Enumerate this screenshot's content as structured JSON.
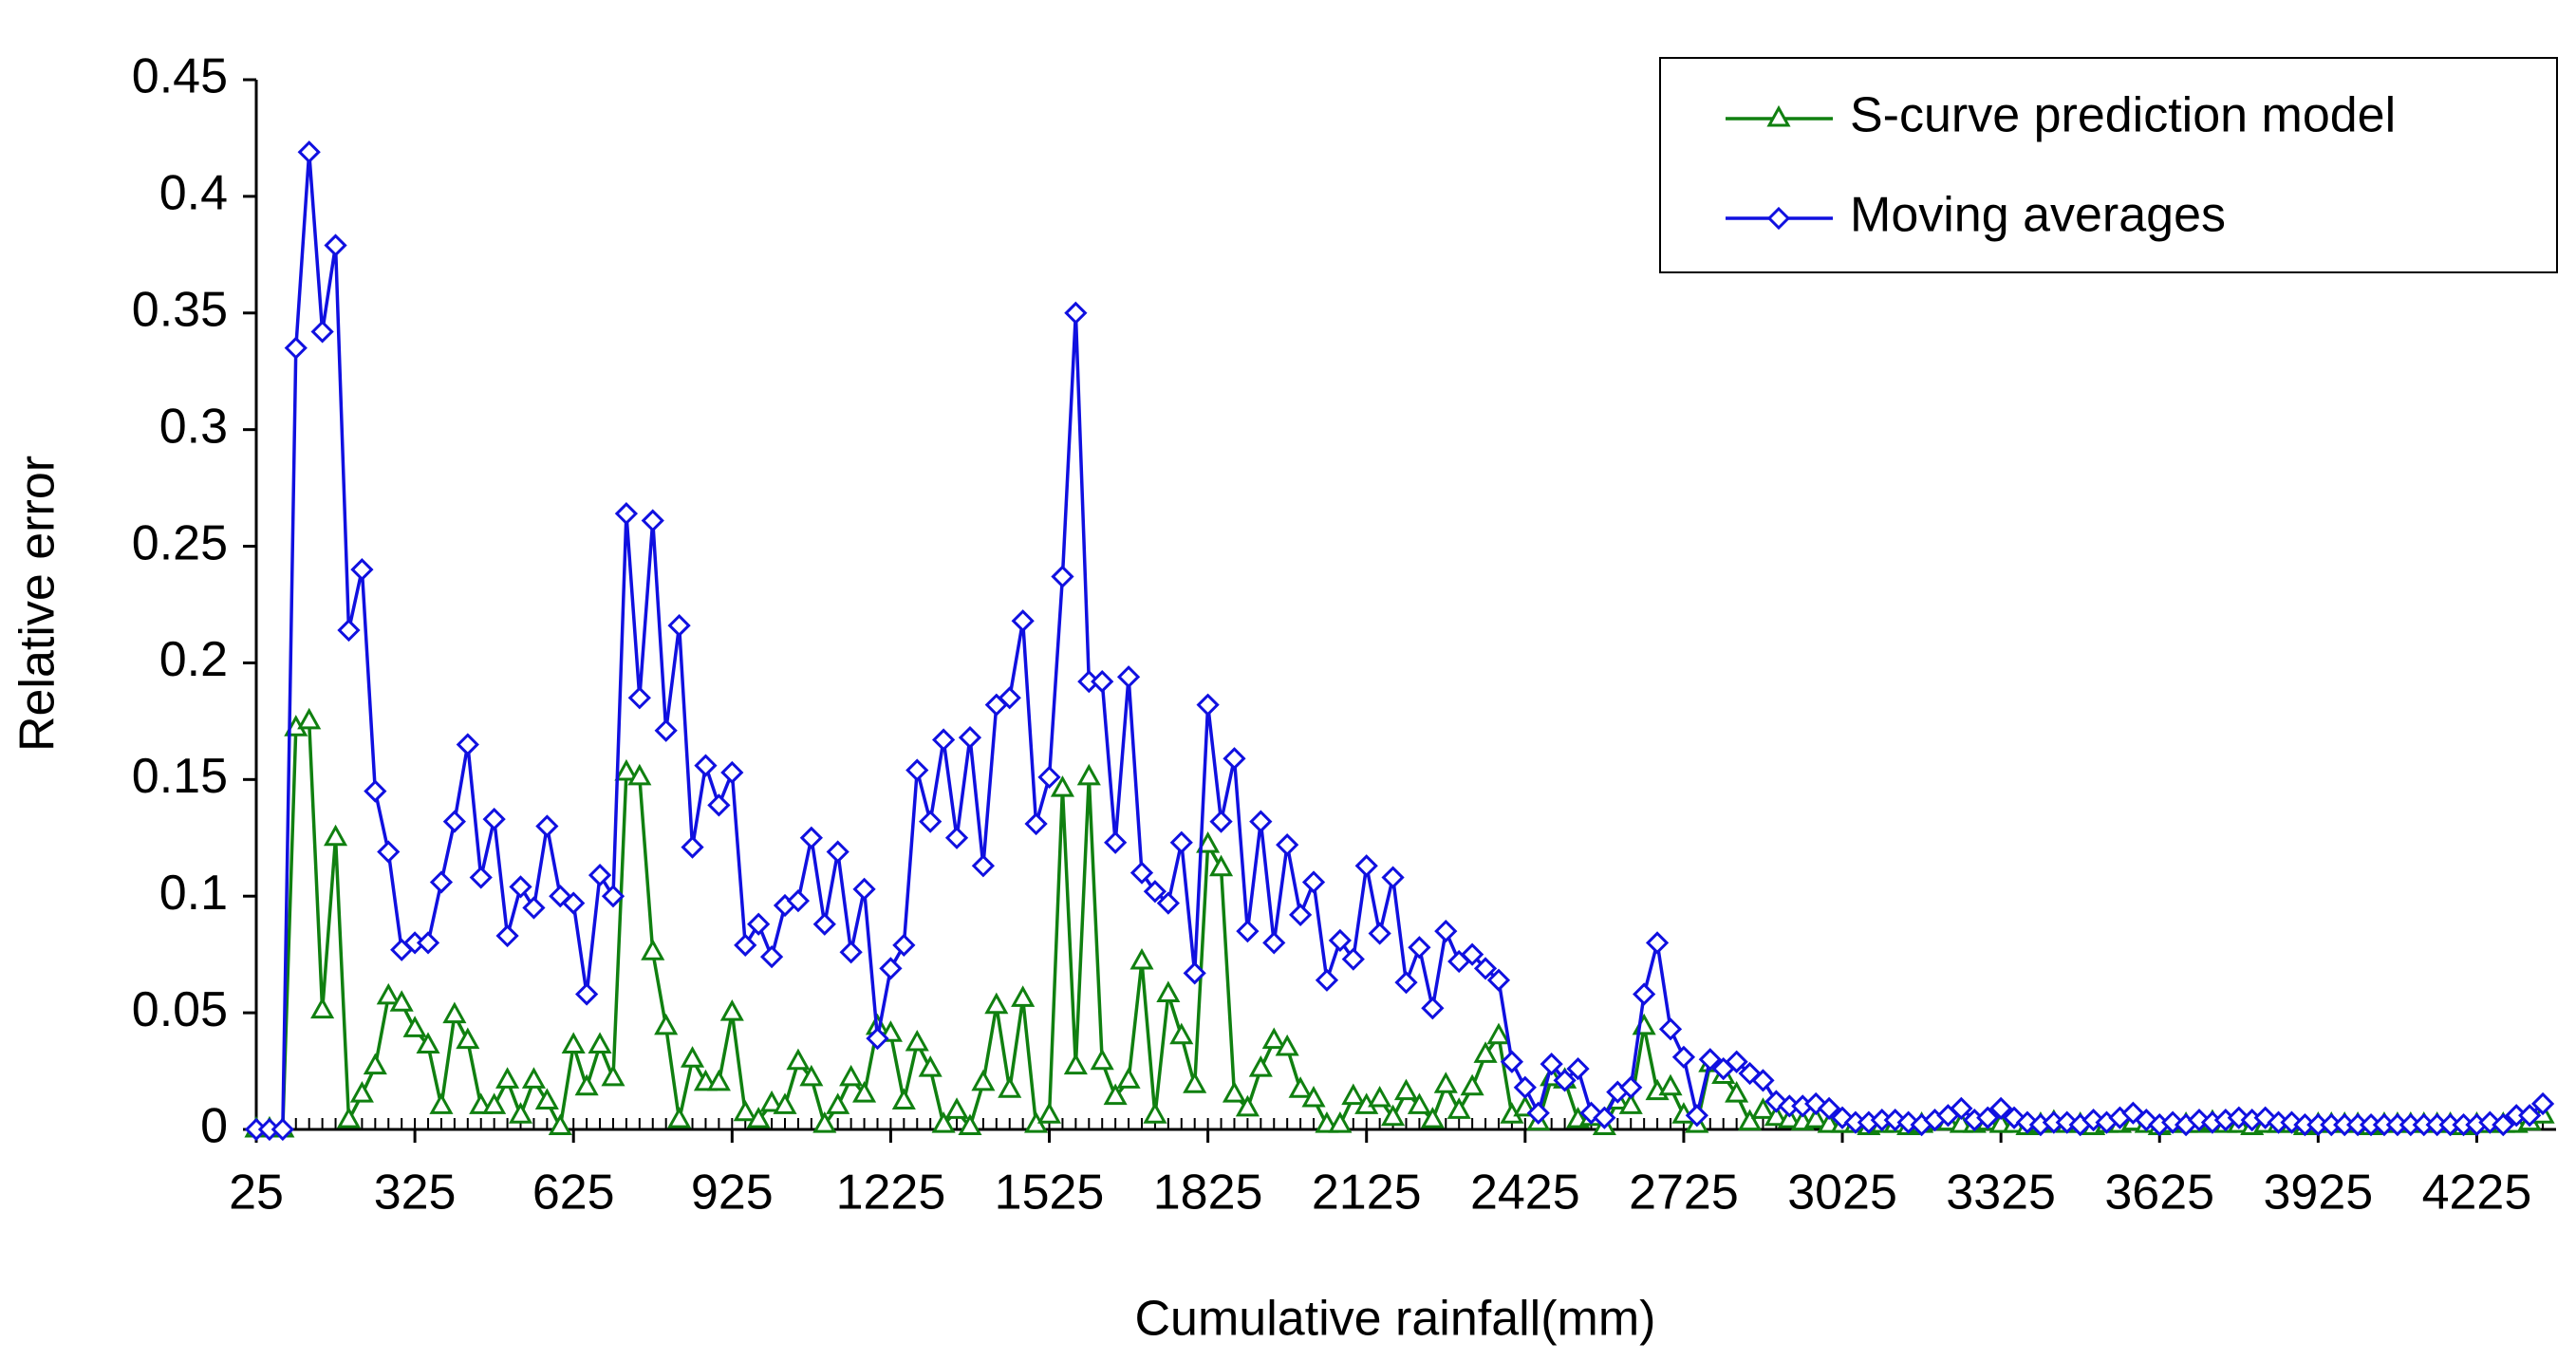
{
  "chart_data": {
    "type": "line",
    "xlabel": "Cumulative rainfall(mm)",
    "ylabel": "Relative error",
    "x": [
      25,
      50,
      75,
      100,
      125,
      150,
      175,
      200,
      225,
      250,
      275,
      300,
      325,
      350,
      375,
      400,
      425,
      450,
      475,
      500,
      525,
      550,
      575,
      600,
      625,
      650,
      675,
      700,
      725,
      750,
      775,
      800,
      825,
      850,
      875,
      900,
      925,
      950,
      975,
      1000,
      1025,
      1050,
      1075,
      1100,
      1125,
      1150,
      1175,
      1200,
      1225,
      1250,
      1275,
      1300,
      1325,
      1350,
      1375,
      1400,
      1425,
      1450,
      1475,
      1500,
      1525,
      1550,
      1575,
      1600,
      1625,
      1650,
      1675,
      1700,
      1725,
      1750,
      1775,
      1800,
      1825,
      1850,
      1875,
      1900,
      1925,
      1950,
      1975,
      2000,
      2025,
      2050,
      2075,
      2100,
      2125,
      2150,
      2175,
      2200,
      2225,
      2250,
      2275,
      2300,
      2325,
      2350,
      2375,
      2400,
      2425,
      2450,
      2475,
      2500,
      2525,
      2550,
      2575,
      2600,
      2625,
      2650,
      2675,
      2700,
      2725,
      2750,
      2775,
      2800,
      2825,
      2850,
      2875,
      2900,
      2925,
      2950,
      2975,
      3000,
      3025,
      3050,
      3075,
      3100,
      3125,
      3150,
      3175,
      3200,
      3225,
      3250,
      3275,
      3300,
      3325,
      3350,
      3375,
      3400,
      3425,
      3450,
      3475,
      3500,
      3525,
      3550,
      3575,
      3600,
      3625,
      3650,
      3675,
      3700,
      3725,
      3750,
      3775,
      3800,
      3825,
      3850,
      3875,
      3900,
      3925,
      3950,
      3975,
      4000,
      4025,
      4050,
      4075,
      4100,
      4125,
      4150,
      4175,
      4200,
      4225,
      4250,
      4275,
      4300,
      4325,
      4350
    ],
    "series": [
      {
        "name": "S-curve prediction model",
        "color": "#108010",
        "marker": "triangle",
        "values": [
          0,
          0,
          0,
          0.172,
          0.175,
          0.051,
          0.125,
          0.004,
          0.015,
          0.027,
          0.057,
          0.054,
          0.043,
          0.036,
          0.01,
          0.049,
          0.038,
          0.01,
          0.01,
          0.021,
          0.006,
          0.021,
          0.012,
          0.001,
          0.036,
          0.018,
          0.036,
          0.022,
          0.153,
          0.151,
          0.076,
          0.044,
          0.004,
          0.03,
          0.02,
          0.02,
          0.05,
          0.007,
          0.004,
          0.011,
          0.01,
          0.029,
          0.022,
          0.002,
          0.01,
          0.022,
          0.015,
          0.044,
          0.041,
          0.012,
          0.037,
          0.026,
          0.002,
          0.008,
          0.001,
          0.02,
          0.053,
          0.017,
          0.056,
          0.002,
          0.006,
          0.146,
          0.027,
          0.151,
          0.029,
          0.014,
          0.021,
          0.072,
          0.006,
          0.058,
          0.04,
          0.019,
          0.122,
          0.112,
          0.015,
          0.009,
          0.026,
          0.038,
          0.035,
          0.017,
          0.013,
          0.002,
          0.002,
          0.014,
          0.01,
          0.013,
          0.005,
          0.016,
          0.01,
          0.004,
          0.019,
          0.008,
          0.018,
          0.032,
          0.04,
          0.006,
          0.009,
          0.003,
          0.022,
          0.021,
          0.004,
          0.005,
          0.001,
          0.012,
          0.01,
          0.044,
          0.016,
          0.018,
          0.006,
          0.002,
          0.028,
          0.023,
          0.015,
          0.003,
          0.008,
          0.005,
          0.004,
          0.003,
          0.004,
          0.002,
          0.002,
          0.002,
          0.001,
          0.002,
          0.002,
          0.001,
          0.002,
          0.003,
          0.003,
          0.002,
          0.002,
          0.003,
          0.002,
          0.002,
          0.001,
          0.002,
          0.003,
          0.002,
          0.002,
          0.001,
          0.002,
          0.002,
          0.003,
          0.002,
          0.001,
          0.002,
          0.002,
          0.002,
          0.003,
          0.002,
          0.002,
          0.001,
          0.002,
          0.002,
          0.002,
          0.001,
          0.002,
          0.002,
          0.002,
          0.002,
          0.001,
          0.002,
          0.002,
          0.002,
          0.002,
          0.002,
          0.002,
          0.001,
          0.002,
          0.002,
          0.002,
          0.002,
          0.003,
          0.006
        ]
      },
      {
        "name": "Moving averages",
        "color": "#1010e0",
        "marker": "diamond",
        "values": [
          0,
          0,
          0,
          0.335,
          0.419,
          0.342,
          0.379,
          0.214,
          0.24,
          0.145,
          0.119,
          0.077,
          0.08,
          0.08,
          0.106,
          0.132,
          0.165,
          0.108,
          0.133,
          0.083,
          0.104,
          0.095,
          0.13,
          0.1,
          0.097,
          0.058,
          0.109,
          0.1,
          0.264,
          0.185,
          0.261,
          0.171,
          0.216,
          0.121,
          0.156,
          0.139,
          0.153,
          0.079,
          0.088,
          0.074,
          0.096,
          0.098,
          0.125,
          0.088,
          0.119,
          0.076,
          0.103,
          0.039,
          0.069,
          0.079,
          0.154,
          0.132,
          0.167,
          0.125,
          0.168,
          0.113,
          0.182,
          0.185,
          0.218,
          0.131,
          0.151,
          0.237,
          0.35,
          0.192,
          0.192,
          0.123,
          0.194,
          0.11,
          0.102,
          0.097,
          0.123,
          0.067,
          0.182,
          0.132,
          0.159,
          0.085,
          0.132,
          0.08,
          0.122,
          0.092,
          0.106,
          0.064,
          0.081,
          0.073,
          0.113,
          0.084,
          0.108,
          0.063,
          0.078,
          0.052,
          0.085,
          0.072,
          0.075,
          0.069,
          0.064,
          0.029,
          0.018,
          0.007,
          0.028,
          0.021,
          0.026,
          0.007,
          0.005,
          0.016,
          0.018,
          0.058,
          0.08,
          0.043,
          0.031,
          0.006,
          0.03,
          0.026,
          0.029,
          0.024,
          0.021,
          0.012,
          0.01,
          0.01,
          0.011,
          0.009,
          0.005,
          0.003,
          0.003,
          0.004,
          0.004,
          0.003,
          0.002,
          0.004,
          0.006,
          0.009,
          0.004,
          0.005,
          0.009,
          0.005,
          0.003,
          0.002,
          0.003,
          0.003,
          0.002,
          0.004,
          0.003,
          0.005,
          0.007,
          0.004,
          0.002,
          0.003,
          0.002,
          0.004,
          0.003,
          0.004,
          0.005,
          0.004,
          0.005,
          0.003,
          0.003,
          0.002,
          0.002,
          0.002,
          0.002,
          0.002,
          0.002,
          0.002,
          0.002,
          0.002,
          0.002,
          0.002,
          0.002,
          0.002,
          0.002,
          0.003,
          0.002,
          0.006,
          0.006,
          0.011
        ]
      }
    ],
    "xlim": [
      25,
      4375
    ],
    "xticks": [
      25,
      325,
      625,
      925,
      1225,
      1525,
      1825,
      2125,
      2425,
      2725,
      3025,
      3325,
      3625,
      3925,
      4225
    ],
    "ylim": [
      0,
      0.45
    ],
    "yticks": [
      0,
      0.05,
      0.1,
      0.15,
      0.2,
      0.25,
      0.3,
      0.35,
      0.4,
      0.45
    ],
    "legend": "upper right"
  }
}
